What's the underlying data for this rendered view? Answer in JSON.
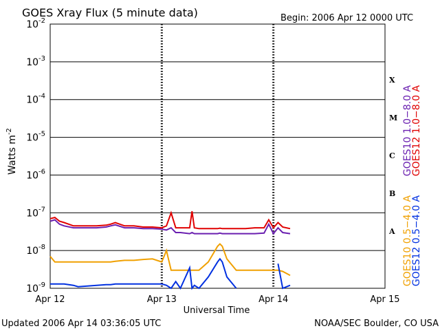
{
  "chart_data": {
    "type": "line",
    "title": "GOES Xray Flux (5 minute data)",
    "subtitle": "Begin:  2006 Apr 12 0000 UTC",
    "ylabel": {
      "label": "Watts m",
      "exponent": "-2"
    },
    "xlabel": "Universal Time",
    "footer_left": "Updated 2006 Apr 14 03:36:05 UTC",
    "footer_right": "NOAA/SEC Boulder, CO USA",
    "log_y": true,
    "grid": true,
    "xlim": [
      0,
      72
    ],
    "xticks": [
      {
        "value": 0,
        "label": "Apr 12"
      },
      {
        "value": 24,
        "label": "Apr 13"
      },
      {
        "value": 48,
        "label": "Apr 14"
      },
      {
        "value": 72,
        "label": "Apr 15"
      }
    ],
    "ylim": [
      1e-09,
      0.01
    ],
    "yticks": [
      {
        "value": 1e-09,
        "label": "10",
        "exponent": "-9"
      },
      {
        "value": 1e-08,
        "label": "10",
        "exponent": "-8"
      },
      {
        "value": 1e-07,
        "label": "10",
        "exponent": "-7"
      },
      {
        "value": 1e-06,
        "label": "10",
        "exponent": "-6"
      },
      {
        "value": 1e-05,
        "label": "10",
        "exponent": "-5"
      },
      {
        "value": 0.0001,
        "label": "10",
        "exponent": "-4"
      },
      {
        "value": 0.001,
        "label": "10",
        "exponent": "-3"
      },
      {
        "value": 0.01,
        "label": "10",
        "exponent": "-2"
      }
    ],
    "flare_classes": [
      "X",
      "M",
      "C",
      "B",
      "A"
    ],
    "x": [
      0,
      1,
      2,
      3,
      5,
      6,
      8,
      10,
      12,
      13,
      14,
      16,
      18,
      20,
      22,
      24,
      25,
      26,
      27,
      28,
      30,
      30.5,
      31,
      32,
      34,
      36,
      36.5,
      37,
      38,
      40,
      42,
      44,
      46,
      47,
      48,
      49,
      50,
      51.6
    ],
    "series": [
      {
        "name": "GOES10 1.0−8.0 A",
        "color": "#6a1fb0",
        "values": [
          6e-08,
          6.5e-08,
          5e-08,
          4.5e-08,
          4e-08,
          4e-08,
          4e-08,
          4e-08,
          4.2e-08,
          4.5e-08,
          4.8e-08,
          4e-08,
          4e-08,
          3.8e-08,
          3.8e-08,
          3.7e-08,
          3.5e-08,
          4e-08,
          3e-08,
          3e-08,
          2.8e-08,
          3e-08,
          2.8e-08,
          2.8e-08,
          2.8e-08,
          2.8e-08,
          2.9e-08,
          2.8e-08,
          2.8e-08,
          2.8e-08,
          2.8e-08,
          2.8e-08,
          2.9e-08,
          5e-08,
          2.8e-08,
          4e-08,
          3e-08,
          2.8e-08
        ]
      },
      {
        "name": "GOES12 1.0−8.0 A",
        "color": "#e00000",
        "values": [
          7e-08,
          7.5e-08,
          6e-08,
          5.5e-08,
          4.5e-08,
          4.5e-08,
          4.5e-08,
          4.5e-08,
          4.7e-08,
          5e-08,
          5.5e-08,
          4.5e-08,
          4.5e-08,
          4.2e-08,
          4.2e-08,
          4e-08,
          4.5e-08,
          1e-07,
          4e-08,
          4e-08,
          4e-08,
          1.1e-07,
          4e-08,
          3.8e-08,
          3.8e-08,
          3.8e-08,
          3.9e-08,
          3.8e-08,
          3.8e-08,
          3.8e-08,
          3.8e-08,
          4e-08,
          4e-08,
          6.5e-08,
          4e-08,
          5.5e-08,
          4.2e-08,
          3.8e-08
        ]
      },
      {
        "name": "GOES10 0.5−4.0 A",
        "color": "#f0a000",
        "values": [
          7e-09,
          5e-09,
          5e-09,
          5e-09,
          5e-09,
          5e-09,
          5e-09,
          5e-09,
          5e-09,
          5e-09,
          5.2e-09,
          5.5e-09,
          5.5e-09,
          5.8e-09,
          6e-09,
          5e-09,
          1e-08,
          3e-09,
          3e-09,
          3e-09,
          3e-09,
          3e-09,
          3e-09,
          3e-09,
          5e-09,
          1.3e-08,
          1.5e-08,
          1.3e-08,
          6e-09,
          3e-09,
          3e-09,
          3e-09,
          3e-09,
          3e-09,
          3e-09,
          3e-09,
          2.8e-09,
          2.2e-09
        ]
      },
      {
        "name": "GOES12 0.5−4.0 A",
        "color": "#0030e0",
        "values": [
          1.3e-09,
          1.3e-09,
          1.3e-09,
          1.3e-09,
          1.2e-09,
          1.1e-09,
          1.15e-09,
          1.2e-09,
          1.25e-09,
          1.25e-09,
          1.3e-09,
          1.3e-09,
          1.3e-09,
          1.3e-09,
          1.3e-09,
          1.3e-09,
          1.2e-09,
          1e-09,
          1.5e-09,
          1e-09,
          3.5e-09,
          1e-09,
          1.2e-09,
          1e-09,
          2e-09,
          5e-09,
          6e-09,
          5e-09,
          2e-09,
          1e-09,
          null,
          null,
          null,
          null,
          null,
          4.5e-09,
          1e-09,
          1.2e-09
        ]
      }
    ]
  }
}
